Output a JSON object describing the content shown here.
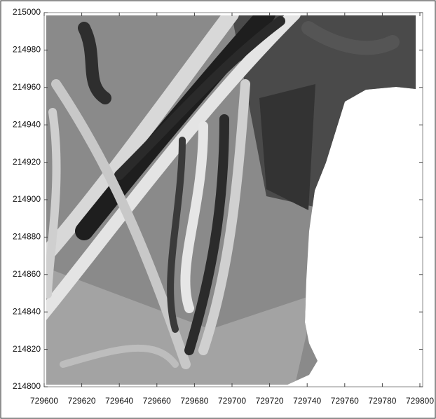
{
  "chart_data": {
    "type": "map",
    "xlim": [
      729600,
      729800
    ],
    "xticks": [
      729600,
      729620,
      729640,
      729660,
      729680,
      729700,
      729720,
      729740,
      729760,
      729780,
      729800
    ],
    "ylim": [
      214800,
      215000
    ],
    "yticks": [
      214800,
      214820,
      214840,
      214860,
      214880,
      214900,
      214920,
      214940,
      214960,
      214980,
      215000
    ]
  }
}
